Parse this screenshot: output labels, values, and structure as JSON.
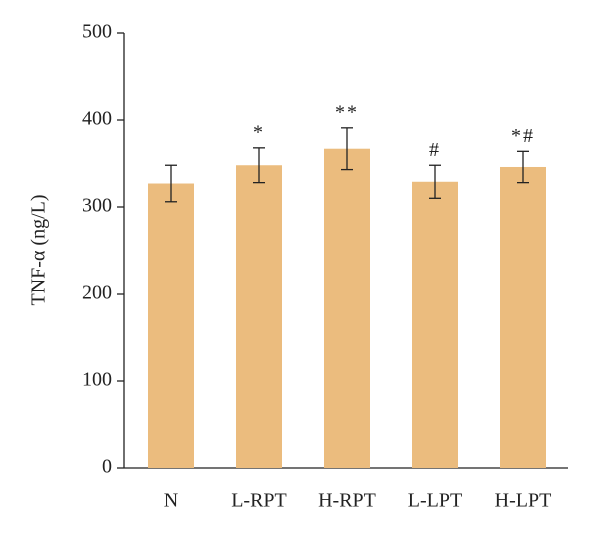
{
  "chart_data": {
    "type": "bar",
    "y_label": "TNF-α (ng/L)",
    "categories": [
      "N",
      "L-RPT",
      "H-RPT",
      "L-LPT",
      "H-LPT"
    ],
    "values": [
      327,
      348,
      367,
      329,
      346
    ],
    "errors": [
      21,
      20,
      24,
      19,
      18
    ],
    "annotations": [
      null,
      "*",
      "**",
      "#",
      "*#"
    ],
    "color": "#ebbc7e",
    "ylim": [
      0,
      500
    ],
    "yticks": [
      0,
      100,
      200,
      300,
      400,
      500
    ]
  }
}
